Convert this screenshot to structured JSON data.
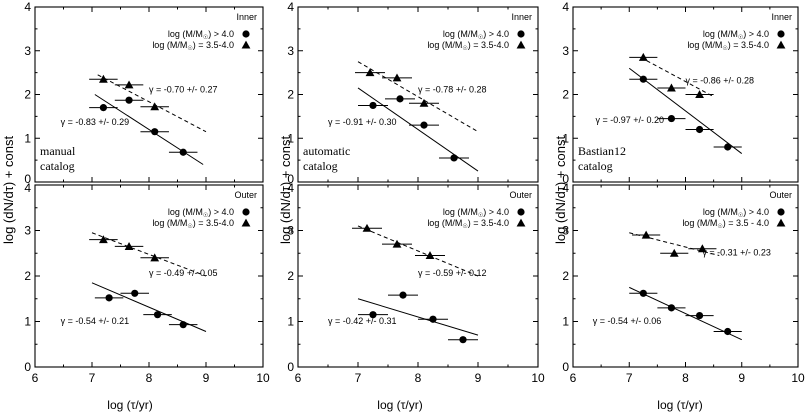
{
  "figure": {
    "ylabel": "log (dN/dτ) + const",
    "xlabel": "log (τ/yr)"
  },
  "chart_data": [
    {
      "type": "scatter",
      "id": "manual-inner",
      "column": 0,
      "row": 0,
      "region": "Inner",
      "xlim": [
        6,
        10
      ],
      "ylim": [
        0,
        4
      ],
      "xticks": [
        "6",
        "7",
        "8",
        "9",
        "10"
      ],
      "yticks": [
        "0",
        "1",
        "2",
        "3",
        "4"
      ],
      "catalog_label": [
        "manual",
        "catalog"
      ],
      "legend": [
        "log (M/M☉) > 4.0",
        "log (M/M☉) = 3.5-4.0"
      ],
      "series": [
        {
          "name": "log (M/M☉) > 4.0",
          "marker": "circle",
          "x": [
            7.2,
            7.65,
            8.1,
            8.6
          ],
          "y": [
            1.7,
            1.87,
            1.15,
            0.68
          ],
          "xerr": 0.25,
          "fit": {
            "x": [
              7.05,
              8.95
            ],
            "y": [
              2.0,
              0.4
            ],
            "style": "solid",
            "label": "γ = -0.83 +/- 0.29"
          }
        },
        {
          "name": "log (M/M☉) = 3.5-4.0",
          "marker": "triangle",
          "x": [
            7.2,
            7.65,
            8.1
          ],
          "y": [
            2.35,
            2.22,
            1.72
          ],
          "xerr": 0.25,
          "fit": {
            "x": [
              7.1,
              9.0
            ],
            "y": [
              2.45,
              1.15
            ],
            "style": "dashed",
            "label": "γ = -0.70 +/- 0.27"
          }
        }
      ],
      "annotations": [
        {
          "text": "γ = -0.83 +/- 0.29",
          "x": 6.45,
          "y": 1.3
        },
        {
          "text": "γ = -0.70 +/- 0.27",
          "x": 8.0,
          "y": 2.05
        }
      ]
    },
    {
      "type": "scatter",
      "id": "automatic-inner",
      "column": 1,
      "row": 0,
      "region": "Inner",
      "xlim": [
        6,
        10
      ],
      "ylim": [
        0,
        4
      ],
      "xticks": [
        "6",
        "7",
        "8",
        "9",
        "10"
      ],
      "yticks": [
        "0",
        "1",
        "2",
        "3",
        "4"
      ],
      "catalog_label": [
        "automatic",
        "catalog"
      ],
      "legend": [
        "log (M/M☉) > 4.0",
        "log (M/M☉) = 3.5-4.0"
      ],
      "series": [
        {
          "name": "log (M/M☉) > 4.0",
          "marker": "circle",
          "x": [
            7.25,
            7.7,
            8.1,
            8.6
          ],
          "y": [
            1.75,
            1.9,
            1.3,
            0.55
          ],
          "xerr": 0.25,
          "fit": {
            "x": [
              7.0,
              9.0
            ],
            "y": [
              2.15,
              0.25
            ],
            "style": "solid",
            "label": "γ = -0.91 +/- 0.30"
          }
        },
        {
          "name": "log (M/M☉) = 3.5-4.0",
          "marker": "triangle",
          "x": [
            7.2,
            7.65,
            8.1
          ],
          "y": [
            2.5,
            2.38,
            1.8
          ],
          "xerr": 0.25,
          "fit": {
            "x": [
              7.0,
              9.0
            ],
            "y": [
              2.75,
              1.15
            ],
            "style": "dashed",
            "label": "γ = -0.78 +/- 0.28"
          }
        }
      ],
      "annotations": [
        {
          "text": "γ = -0.91 +/- 0.30",
          "x": 6.5,
          "y": 1.3
        },
        {
          "text": "γ = -0.78 +/- 0.28",
          "x": 8.0,
          "y": 2.05
        }
      ]
    },
    {
      "type": "scatter",
      "id": "bastian-inner",
      "column": 2,
      "row": 0,
      "region": "Inner",
      "xlim": [
        6,
        10
      ],
      "ylim": [
        0,
        4
      ],
      "xticks": [
        "6",
        "7",
        "8",
        "9",
        "10"
      ],
      "yticks": [
        "0",
        "1",
        "2",
        "3",
        "4"
      ],
      "catalog_label": [
        "Bastian12",
        "catalog"
      ],
      "legend": [
        "log (M/M☉) > 4.0",
        "log (M/M☉) = 3.5-4.0"
      ],
      "series": [
        {
          "name": "log (M/M☉) > 4.0",
          "marker": "circle",
          "x": [
            7.25,
            7.75,
            8.25,
            8.75
          ],
          "y": [
            2.35,
            1.45,
            1.2,
            0.8
          ],
          "xerr": 0.25,
          "fit": {
            "x": [
              7.0,
              9.0
            ],
            "y": [
              2.6,
              0.65
            ],
            "style": "solid",
            "label": "γ = -0.97 +/- 0.20"
          }
        },
        {
          "name": "log (M/M☉) = 3.5-4.0",
          "marker": "triangle",
          "x": [
            7.25,
            7.75,
            8.25
          ],
          "y": [
            2.85,
            2.15,
            2.0
          ],
          "xerr": 0.25,
          "fit": {
            "x": [
              7.2,
              8.5
            ],
            "y": [
              2.85,
              1.95
            ],
            "style": "dashed",
            "label": "γ = -0.86 +/- 0.28"
          }
        }
      ],
      "annotations": [
        {
          "text": "γ = -0.97 +/- 0.20",
          "x": 6.4,
          "y": 1.35
        },
        {
          "text": "γ = -0.86 +/- 0.28",
          "x": 8.0,
          "y": 2.25
        }
      ]
    },
    {
      "type": "scatter",
      "id": "manual-outer",
      "column": 0,
      "row": 1,
      "region": "Outer",
      "xlim": [
        6,
        10
      ],
      "ylim": [
        0,
        4
      ],
      "xticks": [
        "6",
        "7",
        "8",
        "9",
        "10"
      ],
      "yticks": [
        "0",
        "1",
        "2",
        "3",
        "4"
      ],
      "legend": [
        "log (M/M☉) > 4.0",
        "log (M/M☉) = 3.5-4.0"
      ],
      "series": [
        {
          "name": "log (M/M☉) > 4.0",
          "marker": "circle",
          "x": [
            7.3,
            7.75,
            8.15,
            8.6
          ],
          "y": [
            1.52,
            1.62,
            1.15,
            0.93
          ],
          "xerr": 0.25,
          "fit": {
            "x": [
              7.0,
              9.0
            ],
            "y": [
              1.85,
              0.78
            ],
            "style": "solid",
            "label": "γ = -0.54 +/- 0.21"
          }
        },
        {
          "name": "log (M/M☉) = 3.5-4.0",
          "marker": "triangle",
          "x": [
            7.2,
            7.65,
            8.1
          ],
          "y": [
            2.8,
            2.65,
            2.4
          ],
          "xerr": 0.25,
          "fit": {
            "x": [
              7.0,
              9.0
            ],
            "y": [
              2.95,
              2.0
            ],
            "style": "dashed",
            "label": "γ = -0.49 +/- 0.05"
          }
        }
      ],
      "annotations": [
        {
          "text": "γ = -0.54 +/- 0.21",
          "x": 6.45,
          "y": 0.95
        },
        {
          "text": "γ = -0.49 +/- 0.05",
          "x": 8.0,
          "y": 2.0
        }
      ]
    },
    {
      "type": "scatter",
      "id": "automatic-outer",
      "column": 1,
      "row": 1,
      "region": "Outer",
      "xlim": [
        6,
        10
      ],
      "ylim": [
        0,
        4
      ],
      "xticks": [
        "6",
        "7",
        "8",
        "9",
        "10"
      ],
      "yticks": [
        "0",
        "1",
        "2",
        "3",
        "4"
      ],
      "legend": [
        "log (M/M☉) > 4.0",
        "log (M/M☉) = 3.5-4.0"
      ],
      "series": [
        {
          "name": "log (M/M☉) > 4.0",
          "marker": "circle",
          "x": [
            7.25,
            7.75,
            8.25,
            8.75
          ],
          "y": [
            1.15,
            1.58,
            1.05,
            0.6
          ],
          "xerr": 0.25,
          "fit": {
            "x": [
              7.0,
              9.0
            ],
            "y": [
              1.5,
              0.7
            ],
            "style": "solid",
            "label": "γ = -0.42 +/- 0.31"
          }
        },
        {
          "name": "log (M/M☉) = 3.5-4.0",
          "marker": "triangle",
          "x": [
            7.15,
            7.65,
            8.2
          ],
          "y": [
            3.05,
            2.7,
            2.45
          ],
          "xerr": 0.25,
          "fit": {
            "x": [
              7.0,
              9.0
            ],
            "y": [
              3.1,
              2.0
            ],
            "style": "dashed",
            "label": "γ = -0.59 +/- 0.12"
          }
        }
      ],
      "annotations": [
        {
          "text": "γ = -0.42 +/- 0.31",
          "x": 6.5,
          "y": 0.95
        },
        {
          "text": "γ = -0.59 +/- 0.12",
          "x": 8.0,
          "y": 2.0
        }
      ]
    },
    {
      "type": "scatter",
      "id": "bastian-outer",
      "column": 2,
      "row": 1,
      "region": "Outer",
      "xlim": [
        6,
        10
      ],
      "ylim": [
        0,
        4
      ],
      "xticks": [
        "6",
        "7",
        "8",
        "9",
        "10"
      ],
      "yticks": [
        "0",
        "1",
        "2",
        "3",
        "4"
      ],
      "legend": [
        "log (M/M☉) > 4.0",
        "log (M/M☉) = 3.5 - 4.0"
      ],
      "series": [
        {
          "name": "log (M/M☉) > 4.0",
          "marker": "circle",
          "x": [
            7.25,
            7.75,
            8.25,
            8.75
          ],
          "y": [
            1.62,
            1.3,
            1.13,
            0.78
          ],
          "xerr": 0.25,
          "fit": {
            "x": [
              7.0,
              9.0
            ],
            "y": [
              1.75,
              0.6
            ],
            "style": "solid",
            "label": "γ = -0.54 +/- 0.06"
          }
        },
        {
          "name": "log (M/M☉) = 3.5 - 4.0",
          "marker": "triangle",
          "x": [
            7.3,
            7.8,
            8.3
          ],
          "y": [
            2.9,
            2.5,
            2.6
          ],
          "xerr": 0.25,
          "fit": {
            "x": [
              7.0,
              8.6
            ],
            "y": [
              2.95,
              2.45
            ],
            "style": "dashed",
            "label": "γ = -0.31 +/- 0.23"
          }
        }
      ],
      "annotations": [
        {
          "text": "γ = -0.54 +/- 0.06",
          "x": 6.35,
          "y": 0.95
        },
        {
          "text": "γ = -0.31 +/- 0.23",
          "x": 8.3,
          "y": 2.45
        }
      ]
    }
  ]
}
